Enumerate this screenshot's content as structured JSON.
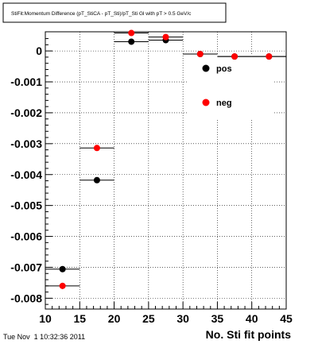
{
  "chart_data": {
    "type": "scatter",
    "title": "StiFit:Momentum Difference (pT_StiCA - pT_Sti)/pT_Sti Gl with pT > 0.5 GeV/c",
    "xlabel": "No. Sti fit points",
    "ylabel": "",
    "xlim": [
      10,
      45
    ],
    "ylim": [
      -0.00835,
      0.00062
    ],
    "xticks": [
      10,
      15,
      20,
      25,
      30,
      35,
      40,
      45
    ],
    "yticks": [
      0,
      -0.001,
      -0.002,
      -0.003,
      -0.004,
      -0.005,
      -0.006,
      -0.007,
      -0.008
    ],
    "ytick_labels": [
      "0",
      "-0.001",
      "-0.002",
      "-0.003",
      "-0.004",
      "-0.005",
      "-0.006",
      "-0.007",
      "-0.008"
    ],
    "grid": true,
    "legend_position": "top-right",
    "series": [
      {
        "name": "pos",
        "color": "#000000",
        "points": [
          {
            "x": 12.5,
            "xerr": 2.5,
            "y": -0.00706,
            "yerr": 8e-05
          },
          {
            "x": 17.5,
            "xerr": 2.5,
            "y": -0.00418,
            "yerr": 3e-05
          },
          {
            "x": 22.5,
            "xerr": 2.5,
            "y": 0.0003,
            "yerr": 2e-05
          },
          {
            "x": 27.5,
            "xerr": 2.5,
            "y": 0.00035,
            "yerr": 2e-05
          },
          {
            "x": 32.5,
            "xerr": 2.5,
            "y": -0.0001,
            "yerr": 1e-05
          },
          {
            "x": 37.5,
            "xerr": 2.5,
            "y": -0.00018,
            "yerr": 1e-05
          },
          {
            "x": 42.5,
            "xerr": 2.5,
            "y": -0.00018,
            "yerr": 1e-05
          }
        ]
      },
      {
        "name": "neg",
        "color": "#ff0000",
        "points": [
          {
            "x": 12.5,
            "xerr": 2.5,
            "y": -0.0076,
            "yerr": 0.0001
          },
          {
            "x": 17.5,
            "xerr": 2.5,
            "y": -0.00314,
            "yerr": 3e-05
          },
          {
            "x": 22.5,
            "xerr": 2.5,
            "y": 0.00058,
            "yerr": 2e-05
          },
          {
            "x": 27.5,
            "xerr": 2.5,
            "y": 0.00045,
            "yerr": 2e-05
          },
          {
            "x": 32.5,
            "xerr": 2.5,
            "y": -0.0001,
            "yerr": 1e-05
          },
          {
            "x": 37.5,
            "xerr": 2.5,
            "y": -0.00018,
            "yerr": 1e-05
          },
          {
            "x": 42.5,
            "xerr": 2.5,
            "y": -0.00018,
            "yerr": 1e-05
          }
        ]
      }
    ]
  },
  "footer": {
    "timestamp": "Tue Nov  1 10:32:36 2011"
  }
}
